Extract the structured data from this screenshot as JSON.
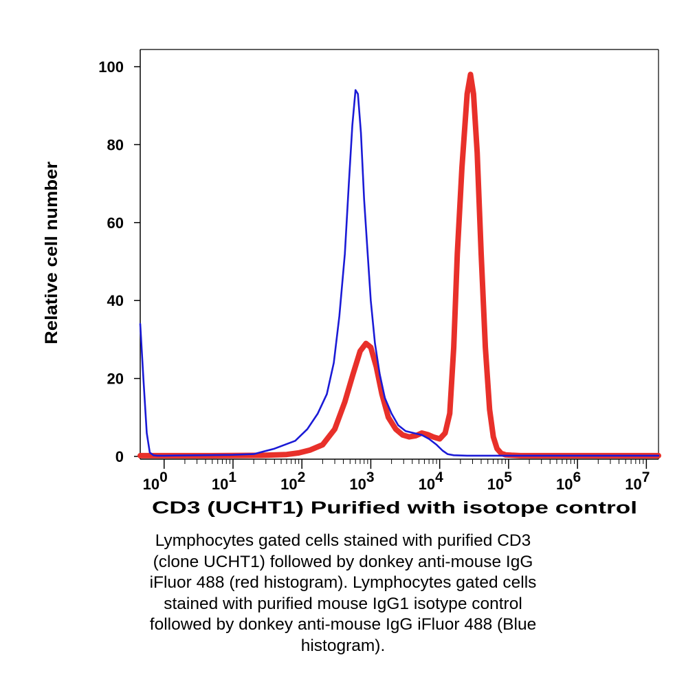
{
  "chart_data": {
    "type": "line",
    "title": "",
    "xlabel": "CD3 (UCHT1) Purified with isotope control",
    "ylabel": "Relative cell number",
    "x_scale": "log",
    "xlim": [
      0.45,
      15000000
    ],
    "ylim": [
      0,
      100
    ],
    "yticks": [
      "0",
      "20",
      "40",
      "60",
      "80",
      "100"
    ],
    "xticks": [
      {
        "base": "10",
        "exp": "0"
      },
      {
        "base": "10",
        "exp": "1"
      },
      {
        "base": "10",
        "exp": "2"
      },
      {
        "base": "10",
        "exp": "3"
      },
      {
        "base": "10",
        "exp": "4"
      },
      {
        "base": "10",
        "exp": "5"
      },
      {
        "base": "10",
        "exp": "6"
      },
      {
        "base": "10",
        "exp": "7"
      }
    ],
    "series": [
      {
        "name": "isotope control (blue histogram)",
        "color": "#1a1ad6",
        "x": [
          0.45,
          0.5,
          0.56,
          0.62,
          0.7,
          0.8,
          1,
          3,
          10,
          20,
          40,
          80,
          120,
          170,
          230,
          290,
          350,
          420,
          480,
          540,
          600,
          650,
          720,
          800,
          900,
          1000,
          1150,
          1350,
          1600,
          2000,
          2500,
          3200,
          4200,
          5500,
          7000,
          9000,
          11000,
          13000,
          16000,
          25000,
          100000,
          1000000,
          15000000
        ],
        "y": [
          34,
          20,
          6,
          1,
          0.3,
          0.2,
          0.2,
          0.3,
          0.4,
          0.6,
          2,
          4,
          7,
          11,
          16,
          24,
          36,
          52,
          70,
          85,
          94,
          93,
          83,
          66,
          52,
          40,
          29,
          21,
          15,
          11,
          8,
          6.5,
          6,
          5.5,
          4.5,
          3,
          1.5,
          0.6,
          0.3,
          0.2,
          0.2,
          0.2,
          0.2
        ]
      },
      {
        "name": "CD3 UCHT1 (red histogram)",
        "color": "#e8302a",
        "x": [
          0.45,
          5,
          30,
          60,
          90,
          130,
          200,
          300,
          420,
          550,
          700,
          850,
          1000,
          1200,
          1450,
          1800,
          2300,
          2900,
          3600,
          4500,
          5500,
          6700,
          8000,
          10000,
          12000,
          14000,
          16000,
          18000,
          21000,
          25000,
          28000,
          31000,
          35000,
          40000,
          46000,
          53000,
          60000,
          68000,
          78000,
          90000,
          110000,
          150000,
          1000000,
          15000000
        ],
        "y": [
          0.2,
          0.2,
          0.3,
          0.5,
          0.9,
          1.6,
          3,
          7,
          14,
          21,
          27,
          29,
          28,
          23,
          16,
          10,
          7,
          5.5,
          5,
          5.3,
          6,
          5.6,
          5,
          4.5,
          6,
          11,
          28,
          52,
          74,
          93,
          98,
          93,
          78,
          52,
          28,
          12,
          5,
          2,
          0.8,
          0.4,
          0.3,
          0.2,
          0.2,
          0.2
        ]
      }
    ]
  },
  "caption": {
    "lines": [
      "Lymphocytes gated cells stained with purified CD3",
      "(clone UCHT1) followed by donkey anti-mouse IgG",
      "iFluor 488 (red histogram). Lymphocytes gated cells",
      "stained with purified mouse IgG1 isotype control",
      "followed by donkey anti-mouse IgG iFluor 488 (Blue",
      "histogram)."
    ]
  }
}
